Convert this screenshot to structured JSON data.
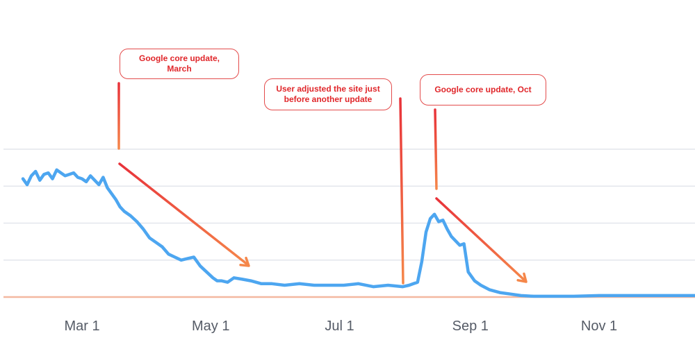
{
  "chart_data": {
    "type": "line",
    "title": "",
    "xlabel": "",
    "ylabel": "",
    "x_ticks": [
      "Mar 1",
      "May 1",
      "Jul 1",
      "Sep 1",
      "Nov 1"
    ],
    "x_range": [
      "2023-02-01",
      "2023-12-31"
    ],
    "y_range": [
      0,
      100
    ],
    "grid": true,
    "legend": "none",
    "series_color": "#4da6f0",
    "baseline_color": "#f3b8a0",
    "series": [
      {
        "x": [
          "2023-02-01",
          "2023-02-03",
          "2023-02-05",
          "2023-02-07",
          "2023-02-09",
          "2023-02-11",
          "2023-02-13",
          "2023-02-15",
          "2023-02-17",
          "2023-02-19",
          "2023-02-21",
          "2023-02-23",
          "2023-02-25",
          "2023-02-27",
          "2023-03-01",
          "2023-03-03",
          "2023-03-05",
          "2023-03-07",
          "2023-03-09",
          "2023-03-11",
          "2023-03-13",
          "2023-03-15",
          "2023-03-17",
          "2023-03-19",
          "2023-03-21",
          "2023-03-24",
          "2023-03-27",
          "2023-03-30",
          "2023-04-02",
          "2023-04-05",
          "2023-04-08",
          "2023-04-11",
          "2023-04-14",
          "2023-04-17",
          "2023-04-20",
          "2023-04-23",
          "2023-04-26",
          "2023-04-29",
          "2023-05-02",
          "2023-05-04",
          "2023-05-06",
          "2023-05-09",
          "2023-05-12",
          "2023-05-16",
          "2023-05-20",
          "2023-05-25",
          "2023-05-30",
          "2023-06-05",
          "2023-06-12",
          "2023-06-19",
          "2023-06-26",
          "2023-07-03",
          "2023-07-10",
          "2023-07-17",
          "2023-07-24",
          "2023-07-31",
          "2023-08-03",
          "2023-08-05",
          "2023-08-07",
          "2023-08-09",
          "2023-08-11",
          "2023-08-13",
          "2023-08-15",
          "2023-08-17",
          "2023-08-19",
          "2023-08-21",
          "2023-08-23",
          "2023-08-25",
          "2023-08-27",
          "2023-08-29",
          "2023-08-31",
          "2023-09-03",
          "2023-09-06",
          "2023-09-10",
          "2023-09-15",
          "2023-09-20",
          "2023-09-25",
          "2023-10-01",
          "2023-10-10",
          "2023-10-20",
          "2023-11-01",
          "2023-11-15",
          "2023-12-01",
          "2023-12-15",
          "2023-12-31"
        ],
        "y": [
          80,
          76,
          82,
          85,
          79,
          83,
          84,
          80,
          86,
          84,
          82,
          83,
          84,
          81,
          80,
          78,
          82,
          79,
          76,
          81,
          74,
          70,
          66,
          61,
          58,
          55,
          51,
          46,
          40,
          37,
          34,
          29,
          27,
          25,
          26,
          27,
          21,
          17,
          13,
          11,
          11,
          10,
          13,
          12,
          11,
          9,
          9,
          8,
          9,
          8,
          8,
          8,
          9,
          7,
          8,
          7,
          8,
          9,
          10,
          24,
          44,
          53,
          56,
          51,
          52,
          46,
          41,
          38,
          35,
          36,
          17,
          11,
          8,
          5,
          3,
          2,
          1,
          0.5,
          0.5,
          0.5,
          1,
          1,
          1,
          1,
          1
        ]
      }
    ],
    "annotations": [
      {
        "text": "Google core update, March"
      },
      {
        "text": "User adjusted the site just before another update"
      },
      {
        "text": "Google core update, Oct"
      }
    ]
  }
}
